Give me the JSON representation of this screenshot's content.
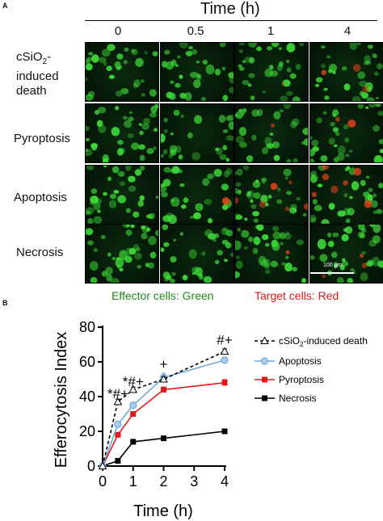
{
  "panel_a": {
    "label": "A",
    "time_title": "Time (h)",
    "time_columns": [
      "0",
      "0.5",
      "1",
      "4"
    ],
    "rows": [
      {
        "key": "csio2",
        "label_pre": "cSiO",
        "label_sub": "2",
        "label_post": "-",
        "label_line2": "induced",
        "label_line3": "death"
      },
      {
        "key": "pyroptosis",
        "label": "Pyroptosis"
      },
      {
        "key": "apoptosis",
        "label": "Apoptosis"
      },
      {
        "key": "necrosis",
        "label": "Necrosis"
      }
    ],
    "scale_bar_label": "100 μm",
    "effector_caption": "Effector cells: Green",
    "target_caption": "Target cells: Red",
    "colors": {
      "effector": "#1a8a1a",
      "target": "#e01818",
      "cell_green": "#3fdc3a",
      "cell_red": "#e0421c"
    }
  },
  "panel_b": {
    "label": "B",
    "chart_data": {
      "type": "line",
      "xlabel": "Time (h)",
      "ylabel": "Efferocytosis Index",
      "xlim": [
        0,
        4
      ],
      "ylim": [
        0,
        80
      ],
      "xticks": [
        0,
        1,
        2,
        3,
        4
      ],
      "yticks": [
        0,
        20,
        40,
        60,
        80
      ],
      "series": [
        {
          "key": "csio2",
          "name_pre": "cSiO",
          "name_sub": "2",
          "name_post": "-induced death",
          "x": [
            0,
            0.5,
            1,
            2,
            4
          ],
          "y": [
            0,
            37,
            44,
            50,
            66
          ],
          "err": [
            0,
            1.5,
            1.5,
            1.5,
            1.5
          ],
          "marker": "triangle-open",
          "line": "dashed",
          "color": "#000000"
        },
        {
          "key": "apoptosis",
          "name": "Apoptosis",
          "x": [
            0,
            0.5,
            1,
            2,
            4
          ],
          "y": [
            0,
            24,
            35,
            51,
            61
          ],
          "err": [
            0,
            1.2,
            1.5,
            2.5,
            1.5
          ],
          "marker": "circle",
          "line": "solid",
          "color": "#6fa9d8",
          "marker_fill": "#a8cff0"
        },
        {
          "key": "pyroptosis",
          "name": "Pyroptosis",
          "x": [
            0,
            0.5,
            1,
            2,
            4
          ],
          "y": [
            0,
            18,
            30,
            44,
            48
          ],
          "err": [
            0,
            1,
            1.2,
            1.5,
            1.8
          ],
          "marker": "square",
          "line": "solid",
          "color": "#e51a1a"
        },
        {
          "key": "necrosis",
          "name": "Necrosis",
          "x": [
            0,
            0.5,
            1,
            2,
            4
          ],
          "y": [
            0,
            3,
            14,
            16,
            20
          ],
          "err": [
            0,
            0.5,
            0.8,
            0.8,
            1
          ],
          "marker": "square",
          "line": "solid",
          "color": "#000000"
        }
      ],
      "annotations": [
        {
          "text": "*#+",
          "x": 0.5,
          "y": 39
        },
        {
          "text": "*#+",
          "x": 1,
          "y": 46
        },
        {
          "text": "+",
          "x": 2,
          "y": 56
        },
        {
          "text": "#+",
          "x": 4,
          "y": 70
        }
      ],
      "legend_position": "top-right"
    }
  }
}
